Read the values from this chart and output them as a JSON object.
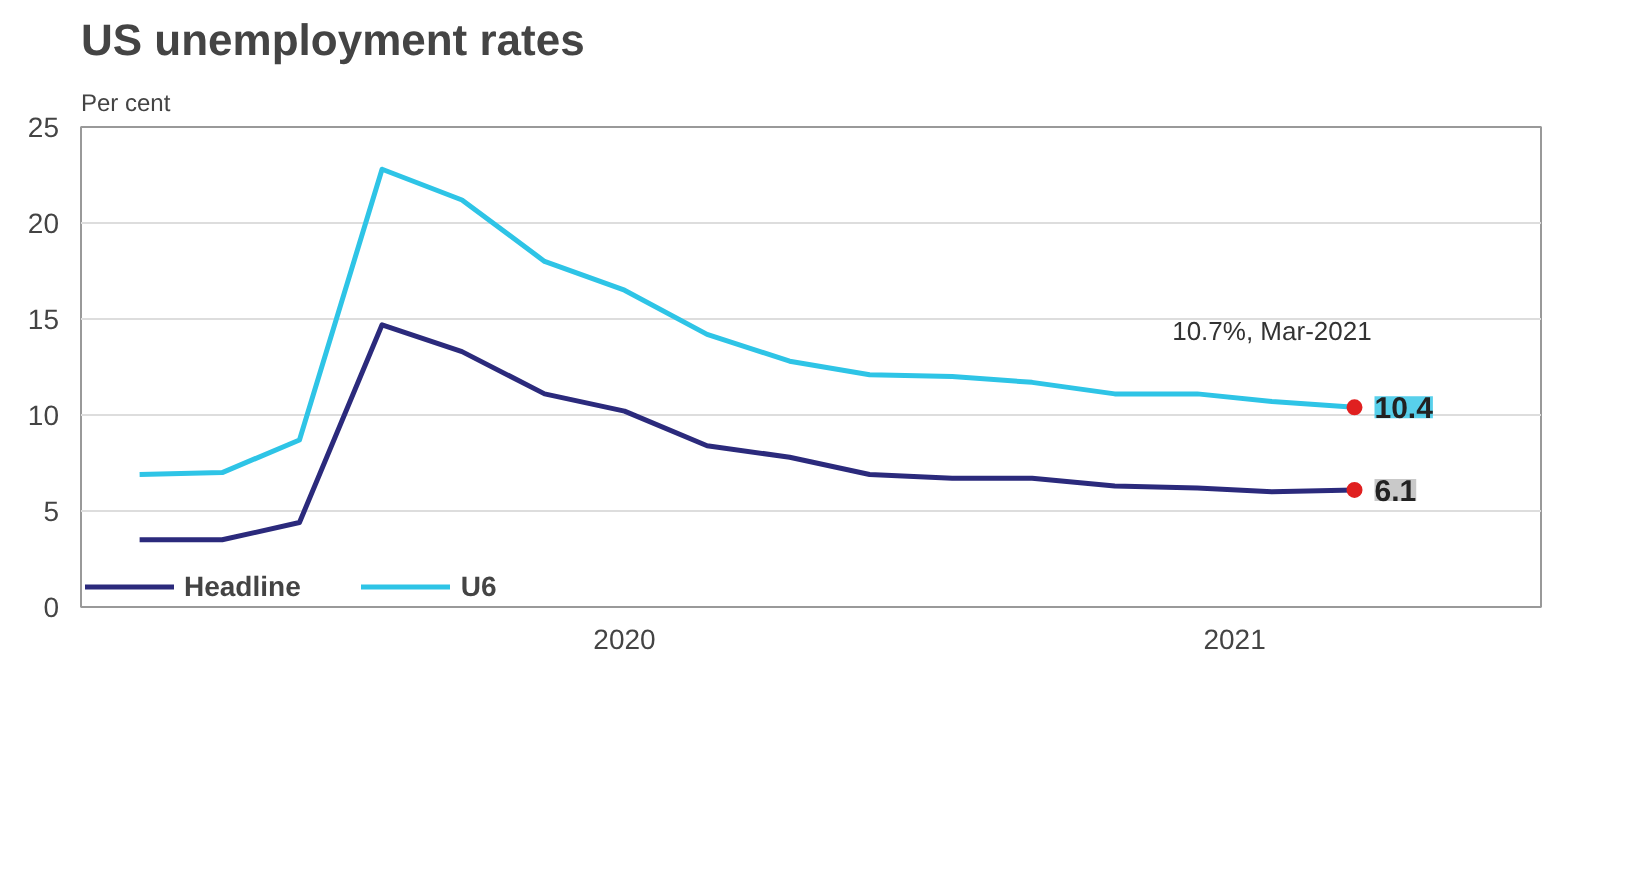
{
  "chart_data": {
    "type": "line",
    "title": "US unemployment rates",
    "ylabel": "Per cent",
    "x": [
      "2020-01",
      "2020-02",
      "2020-03",
      "2020-04",
      "2020-05",
      "2020-06",
      "2020-07",
      "2020-08",
      "2020-09",
      "2020-10",
      "2020-11",
      "2020-12",
      "2021-01",
      "2021-02",
      "2021-03",
      "2021-04"
    ],
    "series": [
      {
        "name": "Headline",
        "color": "#2b2a7c",
        "values": [
          3.5,
          3.5,
          4.4,
          14.7,
          13.3,
          11.1,
          10.2,
          8.4,
          7.8,
          6.9,
          6.7,
          6.7,
          6.3,
          6.2,
          6.0,
          6.1
        ],
        "value_labels": [
          null,
          null,
          null,
          null,
          null,
          null,
          null,
          null,
          null,
          null,
          null,
          null,
          null,
          null,
          null,
          "6.1"
        ]
      },
      {
        "name": "U6",
        "color": "#2ec4e6",
        "values": [
          6.9,
          7.0,
          8.7,
          22.8,
          21.2,
          18.0,
          16.5,
          14.2,
          12.8,
          12.1,
          12.0,
          11.7,
          11.1,
          11.1,
          10.7,
          10.4
        ],
        "value_labels": [
          null,
          null,
          null,
          null,
          null,
          null,
          null,
          null,
          null,
          null,
          null,
          null,
          null,
          null,
          null,
          "10.4"
        ]
      }
    ],
    "xlim": [
      "2019-12-10",
      "2021-06-10"
    ],
    "xticks": [
      {
        "value": "2020-07-01",
        "label": "2020"
      },
      {
        "value": "2021-02-15",
        "label": "2021"
      }
    ],
    "ylim": [
      0,
      25
    ],
    "yticks": [
      0,
      5,
      10,
      15,
      20,
      25
    ],
    "annotations": [
      {
        "text": "10.7%, Mar-2021",
        "x": "2021-03",
        "y": 10.7
      }
    ],
    "grid": "y",
    "legend": "bottom left",
    "marker": "none",
    "line_style": "solid"
  }
}
